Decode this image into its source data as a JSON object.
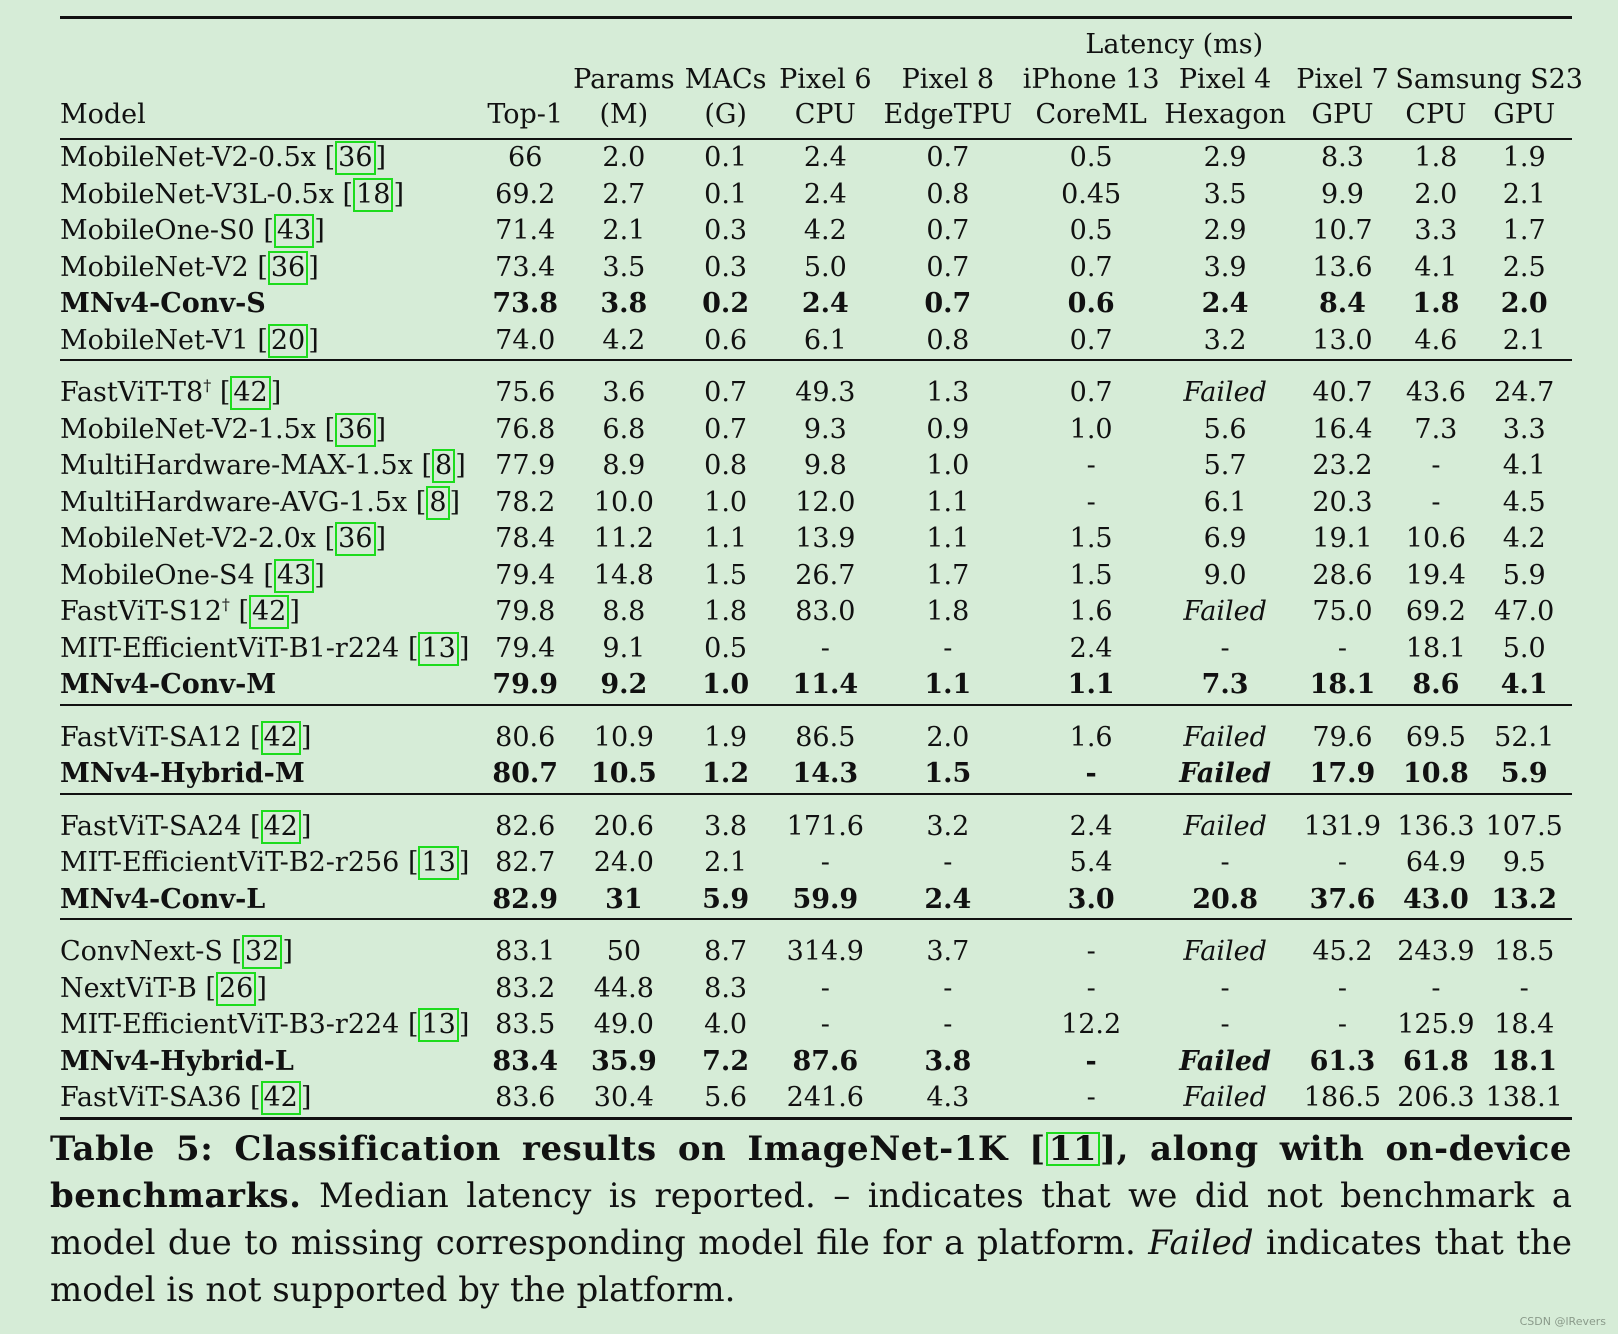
{
  "header": {
    "group_label": "Latency (ms)",
    "columns": [
      {
        "key": "model",
        "lines": [
          "",
          "",
          "Model"
        ]
      },
      {
        "key": "top1",
        "lines": [
          "",
          "",
          "Top-1"
        ]
      },
      {
        "key": "params",
        "lines": [
          "",
          "Params",
          "(M)"
        ]
      },
      {
        "key": "macs",
        "lines": [
          "",
          "MACs",
          "(G)"
        ]
      },
      {
        "key": "p6cpu",
        "lines": [
          "",
          "Pixel 6",
          "CPU"
        ]
      },
      {
        "key": "p8tpu",
        "lines": [
          "",
          "Pixel 8",
          "EdgeTPU"
        ]
      },
      {
        "key": "iphone",
        "lines": [
          "",
          "iPhone 13",
          "CoreML"
        ]
      },
      {
        "key": "p4hex",
        "lines": [
          "",
          "Pixel 4",
          "Hexagon"
        ]
      },
      {
        "key": "p7gpu",
        "lines": [
          "",
          "Pixel 7",
          "GPU"
        ]
      },
      {
        "key": "s23cpu",
        "lines": [
          "",
          "Samsung S23",
          "CPU"
        ]
      },
      {
        "key": "s23gpu",
        "lines": [
          "",
          "",
          "GPU"
        ]
      }
    ]
  },
  "rows": [
    {
      "name": "MobileNet-V2-0.5x",
      "sup": "",
      "cite": "36",
      "bold": false,
      "values": [
        "66",
        "2.0",
        "0.1",
        "2.4",
        "0.7",
        "0.5",
        "2.9",
        "8.3",
        "1.8",
        "1.9"
      ]
    },
    {
      "name": "MobileNet-V3L-0.5x",
      "sup": "",
      "cite": "18",
      "bold": false,
      "values": [
        "69.2",
        "2.7",
        "0.1",
        "2.4",
        "0.8",
        "0.45",
        "3.5",
        "9.9",
        "2.0",
        "2.1"
      ]
    },
    {
      "name": "MobileOne-S0",
      "sup": "",
      "cite": "43",
      "bold": false,
      "values": [
        "71.4",
        "2.1",
        "0.3",
        "4.2",
        "0.7",
        "0.5",
        "2.9",
        "10.7",
        "3.3",
        "1.7"
      ]
    },
    {
      "name": "MobileNet-V2",
      "sup": "",
      "cite": "36",
      "bold": false,
      "values": [
        "73.4",
        "3.5",
        "0.3",
        "5.0",
        "0.7",
        "0.7",
        "3.9",
        "13.6",
        "4.1",
        "2.5"
      ]
    },
    {
      "name": "MNv4-Conv-S",
      "sup": "",
      "cite": "",
      "bold": true,
      "values": [
        "73.8",
        "3.8",
        "0.2",
        "2.4",
        "0.7",
        "0.6",
        "2.4",
        "8.4",
        "1.8",
        "2.0"
      ]
    },
    {
      "name": "MobileNet-V1",
      "sup": "",
      "cite": "20",
      "bold": false,
      "group_end": true,
      "values": [
        "74.0",
        "4.2",
        "0.6",
        "6.1",
        "0.8",
        "0.7",
        "3.2",
        "13.0",
        "4.6",
        "2.1"
      ]
    },
    {
      "name": "FastViT-T8",
      "sup": "†",
      "cite": "42",
      "bold": false,
      "group_start": true,
      "values": [
        "75.6",
        "3.6",
        "0.7",
        "49.3",
        "1.3",
        "0.7",
        "Failed",
        "40.7",
        "43.6",
        "24.7"
      ]
    },
    {
      "name": "MobileNet-V2-1.5x",
      "sup": "",
      "cite": "36",
      "bold": false,
      "values": [
        "76.8",
        "6.8",
        "0.7",
        "9.3",
        "0.9",
        "1.0",
        "5.6",
        "16.4",
        "7.3",
        "3.3"
      ]
    },
    {
      "name": "MultiHardware-MAX-1.5x",
      "sup": "",
      "cite": "8",
      "bold": false,
      "values": [
        "77.9",
        "8.9",
        "0.8",
        "9.8",
        "1.0",
        "-",
        "5.7",
        "23.2",
        "-",
        "4.1"
      ]
    },
    {
      "name": "MultiHardware-AVG-1.5x",
      "sup": "",
      "cite": "8",
      "bold": false,
      "values": [
        "78.2",
        "10.0",
        "1.0",
        "12.0",
        "1.1",
        "-",
        "6.1",
        "20.3",
        "-",
        "4.5"
      ]
    },
    {
      "name": "MobileNet-V2-2.0x",
      "sup": "",
      "cite": "36",
      "bold": false,
      "values": [
        "78.4",
        "11.2",
        "1.1",
        "13.9",
        "1.1",
        "1.5",
        "6.9",
        "19.1",
        "10.6",
        "4.2"
      ]
    },
    {
      "name": "MobileOne-S4",
      "sup": "",
      "cite": "43",
      "bold": false,
      "values": [
        "79.4",
        "14.8",
        "1.5",
        "26.7",
        "1.7",
        "1.5",
        "9.0",
        "28.6",
        "19.4",
        "5.9"
      ]
    },
    {
      "name": "FastViT-S12",
      "sup": "†",
      "cite": "42",
      "bold": false,
      "values": [
        "79.8",
        "8.8",
        "1.8",
        "83.0",
        "1.8",
        "1.6",
        "Failed",
        "75.0",
        "69.2",
        "47.0"
      ]
    },
    {
      "name": "MIT-EfficientViT-B1-r224",
      "sup": "",
      "cite": "13",
      "bold": false,
      "values": [
        "79.4",
        "9.1",
        "0.5",
        "-",
        "-",
        "2.4",
        "-",
        "-",
        "18.1",
        "5.0"
      ]
    },
    {
      "name": "MNv4-Conv-M",
      "sup": "",
      "cite": "",
      "bold": true,
      "group_end": true,
      "values": [
        "79.9",
        "9.2",
        "1.0",
        "11.4",
        "1.1",
        "1.1",
        "7.3",
        "18.1",
        "8.6",
        "4.1"
      ]
    },
    {
      "name": "FastViT-SA12",
      "sup": "",
      "cite": "42",
      "bold": false,
      "group_start": true,
      "values": [
        "80.6",
        "10.9",
        "1.9",
        "86.5",
        "2.0",
        "1.6",
        "Failed",
        "79.6",
        "69.5",
        "52.1"
      ]
    },
    {
      "name": "MNv4-Hybrid-M",
      "sup": "",
      "cite": "",
      "bold": true,
      "group_end": true,
      "values": [
        "80.7",
        "10.5",
        "1.2",
        "14.3",
        "1.5",
        "-",
        "Failed",
        "17.9",
        "10.8",
        "5.9"
      ]
    },
    {
      "name": "FastViT-SA24",
      "sup": "",
      "cite": "42",
      "bold": false,
      "group_start": true,
      "values": [
        "82.6",
        "20.6",
        "3.8",
        "171.6",
        "3.2",
        "2.4",
        "Failed",
        "131.9",
        "136.3",
        "107.5"
      ]
    },
    {
      "name": "MIT-EfficientViT-B2-r256",
      "sup": "",
      "cite": "13",
      "bold": false,
      "values": [
        "82.7",
        "24.0",
        "2.1",
        "-",
        "-",
        "5.4",
        "-",
        "-",
        "64.9",
        "9.5"
      ]
    },
    {
      "name": "MNv4-Conv-L",
      "sup": "",
      "cite": "",
      "bold": true,
      "group_end": true,
      "values": [
        "82.9",
        "31",
        "5.9",
        "59.9",
        "2.4",
        "3.0",
        "20.8",
        "37.6",
        "43.0",
        "13.2"
      ]
    },
    {
      "name": "ConvNext-S",
      "sup": "",
      "cite": "32",
      "bold": false,
      "group_start": true,
      "values": [
        "83.1",
        "50",
        "8.7",
        "314.9",
        "3.7",
        "-",
        "Failed",
        "45.2",
        "243.9",
        "18.5"
      ]
    },
    {
      "name": "NextViT-B",
      "sup": "",
      "cite": "26",
      "bold": false,
      "values": [
        "83.2",
        "44.8",
        "8.3",
        "-",
        "-",
        "-",
        "-",
        "-",
        "-",
        "-"
      ]
    },
    {
      "name": "MIT-EfficientViT-B3-r224",
      "sup": "",
      "cite": "13",
      "bold": false,
      "values": [
        "83.5",
        "49.0",
        "4.0",
        "-",
        "-",
        "12.2",
        "-",
        "-",
        "125.9",
        "18.4"
      ]
    },
    {
      "name": "MNv4-Hybrid-L",
      "sup": "",
      "cite": "",
      "bold": true,
      "values": [
        "83.4",
        "35.9",
        "7.2",
        "87.6",
        "3.8",
        "-",
        "Failed",
        "61.3",
        "61.8",
        "18.1"
      ]
    },
    {
      "name": "FastViT-SA36",
      "sup": "",
      "cite": "42",
      "bold": false,
      "last": true,
      "values": [
        "83.6",
        "30.4",
        "5.6",
        "241.6",
        "4.3",
        "-",
        "Failed",
        "186.5",
        "206.3",
        "138.1"
      ]
    }
  ],
  "caption": {
    "bold_pre": "Table 5: Classification results on ImageNet-1K [",
    "bold_cite": "11",
    "bold_post": "], along with on-device benchmarks.",
    "text1": " Median latency is reported. – indicates that we did not benchmark a model due to missing corresponding model file for a platform. ",
    "italic": "Failed",
    "text2": " indicates that the model is not supported by the platform."
  },
  "watermark": "CSDN @lRevers",
  "colors": {
    "background": "#d6ecd7",
    "citation_box": "#1ddc1d",
    "text": "#111111"
  }
}
